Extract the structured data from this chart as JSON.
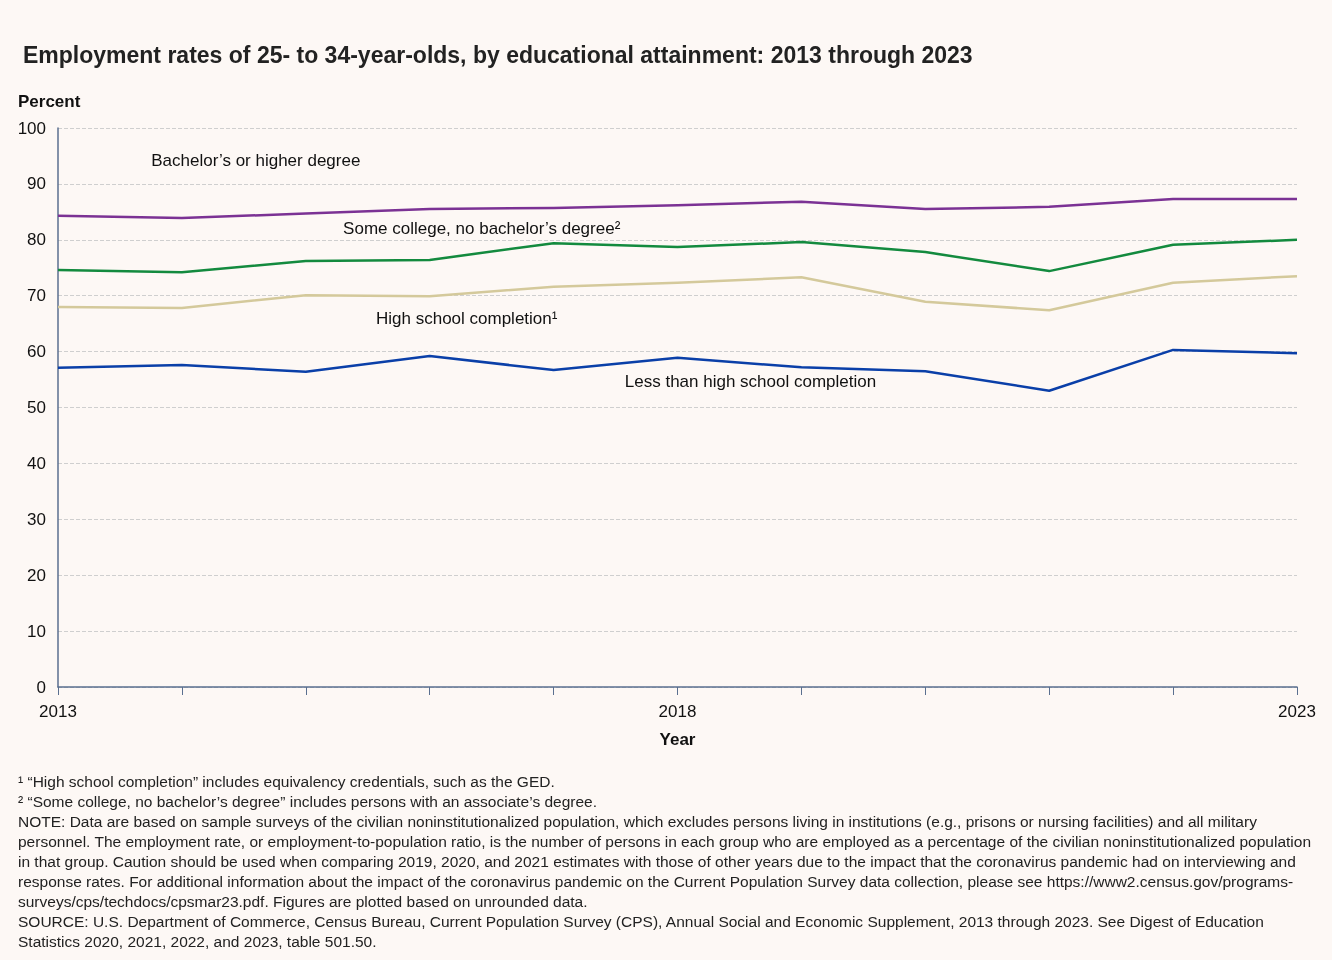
{
  "chart_data": {
    "type": "line",
    "title": "Employment rates of 25- to 34-year-olds, by educational attainment: 2013 through 2023",
    "xlabel": "Year",
    "ylabel": "Percent",
    "x": [
      2013,
      2014,
      2015,
      2016,
      2017,
      2018,
      2019,
      2020,
      2021,
      2022,
      2023
    ],
    "xlim": [
      2013,
      2023
    ],
    "xticks": [
      2013,
      {
        "value": 2014,
        "label": null
      },
      {
        "value": 2015,
        "label": null
      },
      {
        "value": 2016,
        "label": null
      },
      {
        "value": 2017,
        "label": null
      },
      2018,
      {
        "value": 2019,
        "label": null
      },
      {
        "value": 2020,
        "label": null
      },
      {
        "value": 2021,
        "label": null
      },
      {
        "value": 2022,
        "label": null
      },
      2023
    ],
    "ylim": [
      0,
      100
    ],
    "yticks": [
      0,
      10,
      20,
      30,
      40,
      50,
      60,
      70,
      80,
      90,
      100
    ],
    "grid": "y",
    "legend": false,
    "marker": "none",
    "line_style": "solid",
    "series": [
      {
        "name": "Bachelor’s or higher degree",
        "color": "#7b3294",
        "values": [
          84.3,
          83.9,
          84.7,
          85.5,
          85.7,
          86.2,
          86.8,
          85.5,
          85.9,
          87.3,
          87.3
        ]
      },
      {
        "name": "Some college, no bachelor’s degree²",
        "color": "#138a3e",
        "values": [
          74.6,
          74.2,
          76.2,
          76.4,
          79.4,
          78.7,
          79.6,
          77.8,
          74.4,
          79.1,
          80.0
        ]
      },
      {
        "name": "High school completion¹",
        "color": "#d4c99b",
        "values": [
          68.0,
          67.8,
          70.1,
          69.9,
          71.6,
          72.3,
          73.3,
          68.9,
          67.4,
          72.3,
          73.5
        ]
      },
      {
        "name": "Less than high school completion",
        "color": "#0a3fa8",
        "values": [
          57.1,
          57.6,
          56.4,
          59.2,
          56.7,
          58.9,
          57.2,
          56.5,
          53.0,
          60.3,
          59.7
        ]
      }
    ],
    "annotations": [
      "¹ “High school completion” includes equivalency credentials, such as the GED.",
      "² “Some college, no bachelor’s degree” includes persons with an associate’s degree.",
      "NOTE: Data are based on sample surveys of the civilian noninstitutionalized population, which excludes persons living in institutions (e.g., prisons or nursing facilities) and all military personnel. The employment rate, or employment-to-population ratio, is the number of persons in each group who are employed as a percentage of the civilian noninstitutionalized population in that group. Caution should be used when comparing 2019, 2020, and 2021 estimates with those of other years due to the impact that the coronavirus pandemic had on interviewing and response rates. For additional information about the impact of the coronavirus pandemic on the Current Population Survey data collection, please see https://www2.census.gov/programs-surveys/cps/techdocs/cpsmar23.pdf. Figures are plotted based on unrounded data.",
      "SOURCE: U.S. Department of Commerce, Census Bureau, Current Population Survey (CPS), Annual Social and Economic Supplement, 2013 through 2023. See Digest of Education Statistics 2020, 2021, 2022, and 2023, table 501.50."
    ]
  }
}
